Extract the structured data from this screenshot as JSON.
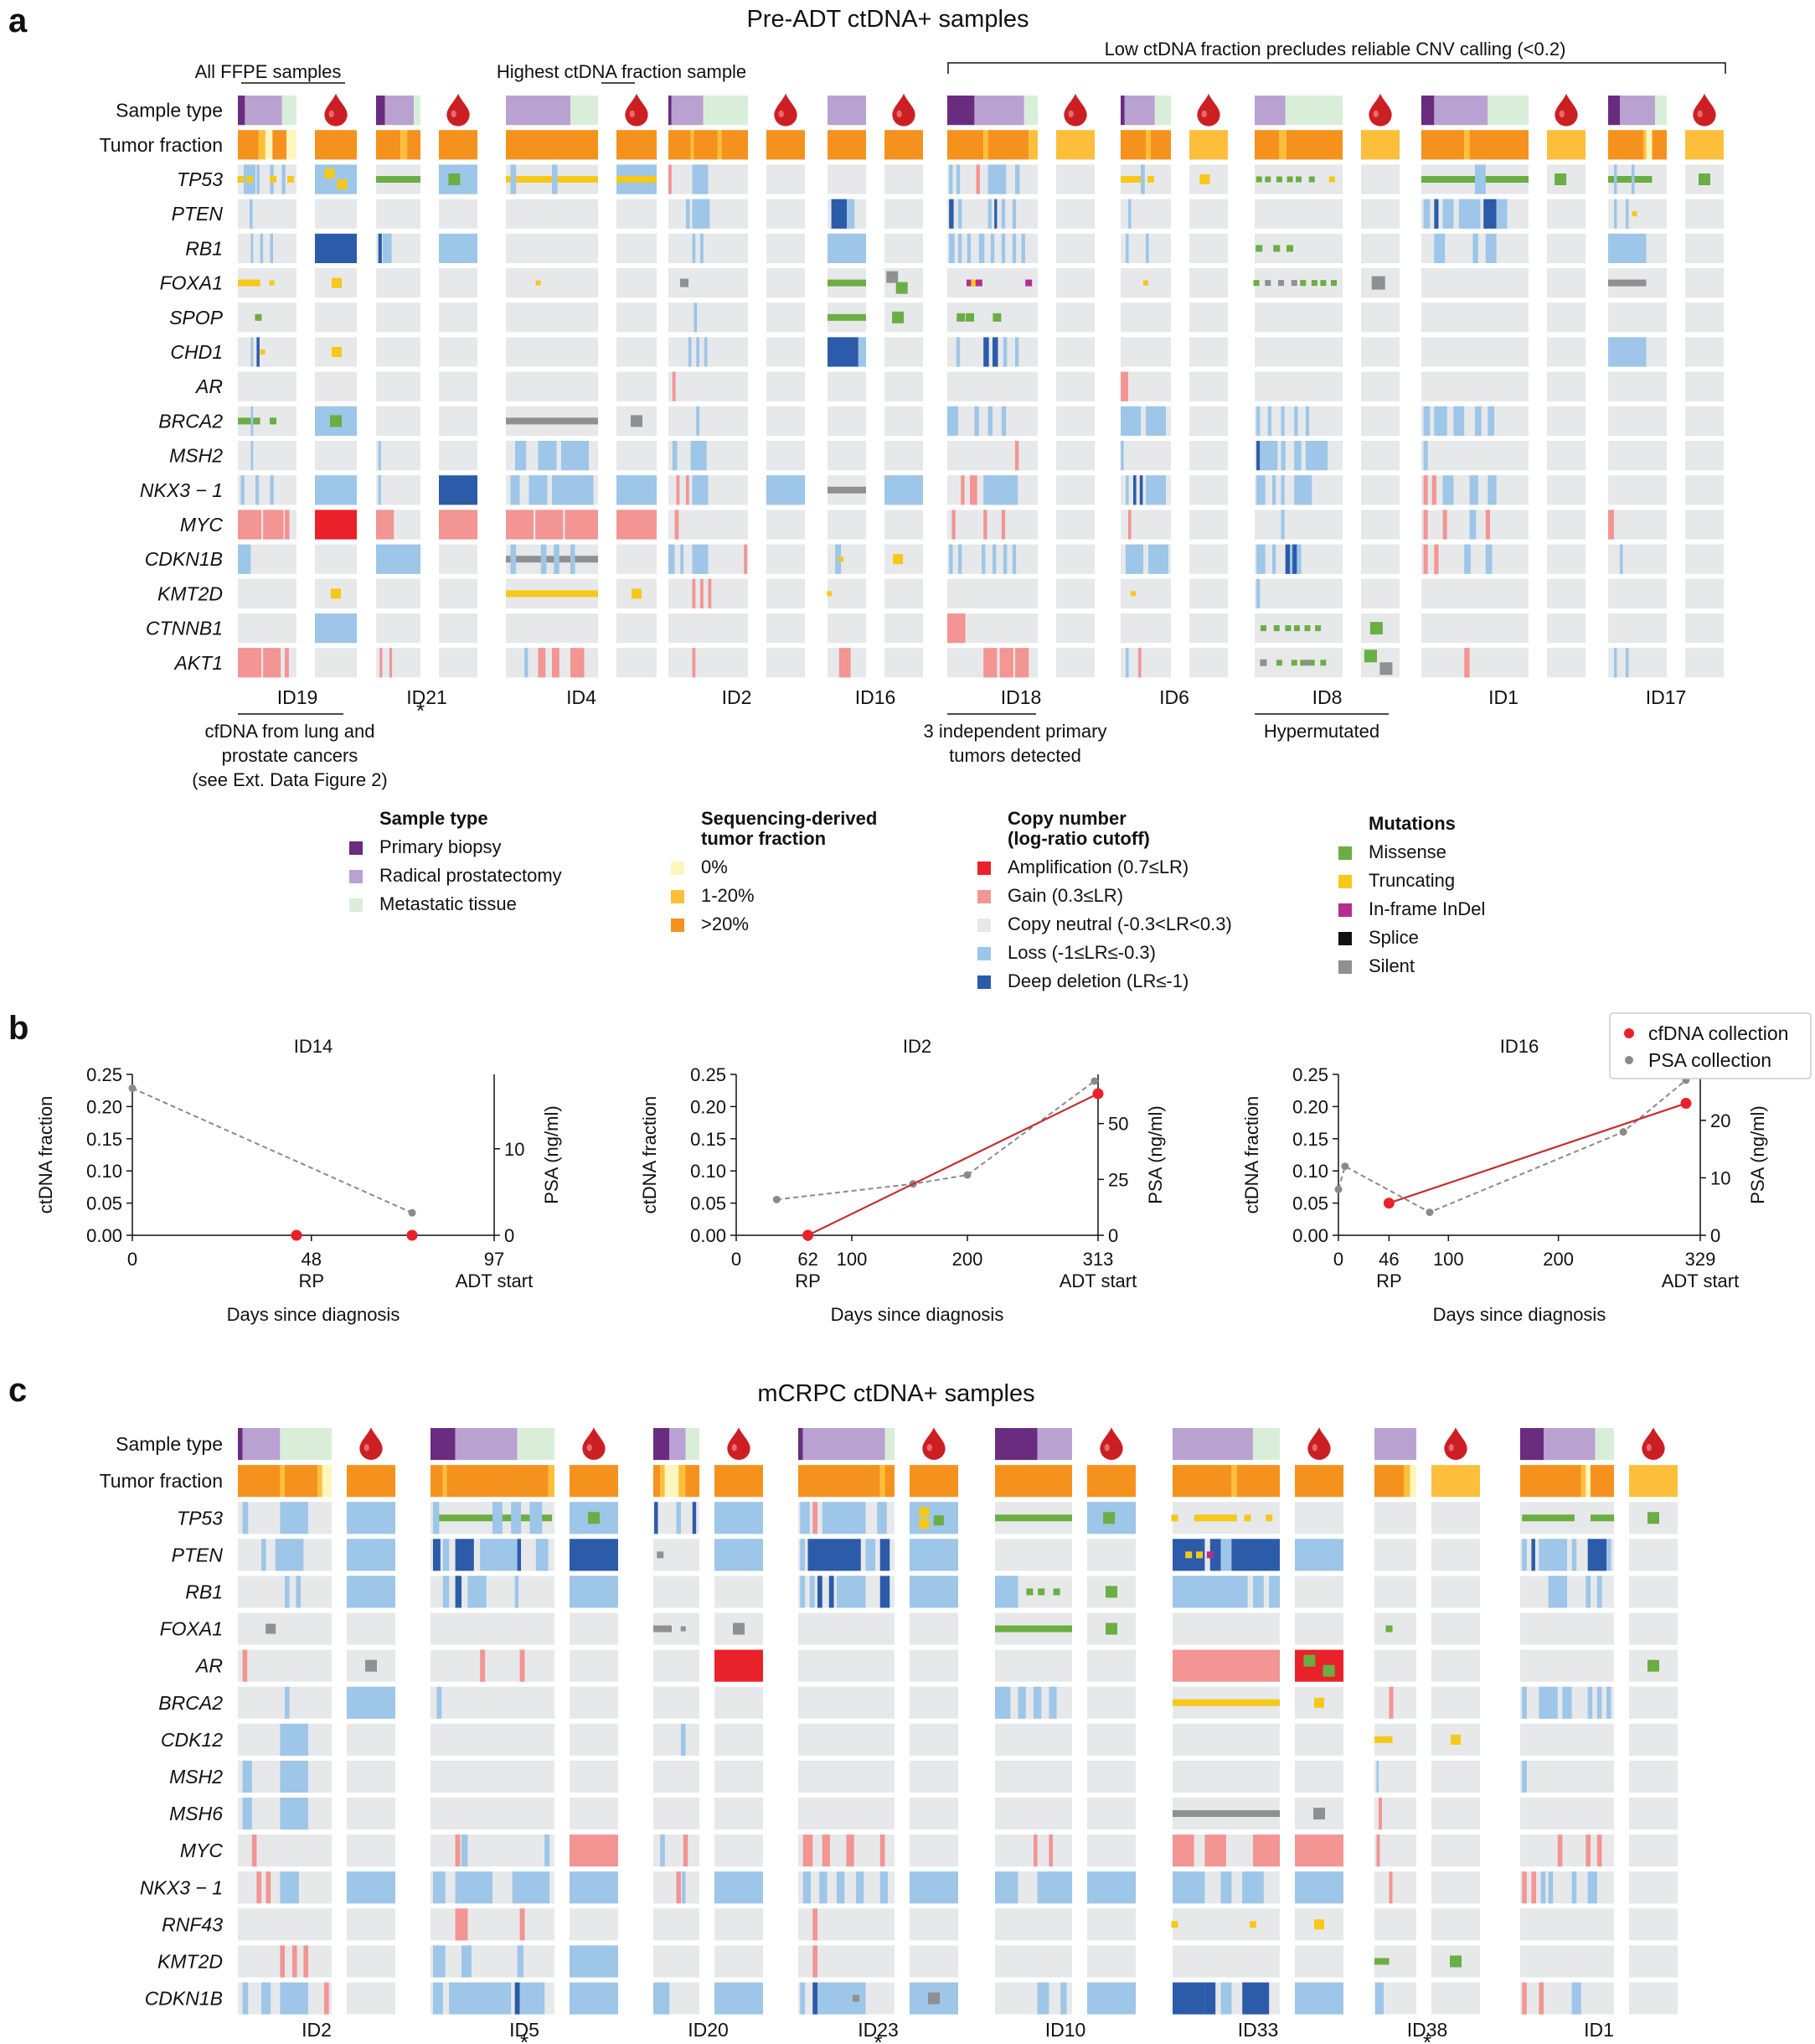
{
  "panel_letters": {
    "a": "a",
    "b": "b",
    "c": "c"
  },
  "colors": {
    "bg_cell": "#e7e8ea",
    "primary_biopsy": "#6a2c7e",
    "radical_prostatectomy": "#b9a2d2",
    "metastatic_tissue": "#d9eed8",
    "tf_0": "#fdf6bf",
    "tf_low": "#fdbf3b",
    "tf_high": "#f5921d",
    "amp": "#e9212a",
    "gain": "#f29593",
    "neutral": "#e7e8ea",
    "loss": "#9dc6e8",
    "deep": "#2c5ba9",
    "missense": "#6aae44",
    "truncating": "#f6c81a",
    "indel": "#b52e8e",
    "splice": "#111111",
    "silent": "#909090",
    "drop": "#cc1f24",
    "psa_line": "#8a8a8a",
    "cfdna_line": "#c4302f"
  },
  "panel_a": {
    "title": "Pre-ADT ctDNA+ samples",
    "row_labels": [
      "Sample type",
      "Tumor fraction",
      "TP53",
      "PTEN",
      "RB1",
      "FOXA1",
      "SPOP",
      "CHD1",
      "AR",
      "BRCA2",
      "MSH2",
      "NKX3 − 1",
      "MYC",
      "CDKN1B",
      "KMT2D",
      "CTNNB1",
      "AKT1"
    ],
    "patients": [
      "ID19",
      "ID21",
      "ID4",
      "ID2",
      "ID16",
      "ID18",
      "ID6",
      "ID8",
      "ID1",
      "ID17"
    ],
    "asterisk": "*",
    "annotations": {
      "ffpe": "All FFPE samples",
      "highest": "Highest ctDNA fraction sample",
      "low_ctdna": "Low ctDNA fraction precludes reliable CNV calling (<0.2)",
      "cfdna_lung_1": "cfDNA from lung and",
      "cfdna_lung_2": "prostate cancers",
      "cfdna_lung_3": "(see Ext. Data Figure 2)",
      "three_primary_1": "3 independent primary",
      "three_primary_2": "tumors detected",
      "hypermutated": "Hypermutated"
    }
  },
  "legend": {
    "sample_type": {
      "title": "Sample type",
      "items": [
        "Primary biopsy",
        "Radical prostatectomy",
        "Metastatic tissue"
      ]
    },
    "tumor_fraction": {
      "title1": "Sequencing-derived",
      "title2": "tumor fraction",
      "items": [
        "0%",
        "1-20%",
        ">20%"
      ]
    },
    "copy_number": {
      "title1": "Copy number",
      "title2": "(log-ratio cutoff)",
      "items": [
        "Amplification (0.7≤LR)",
        "Gain (0.3≤LR)",
        "Copy neutral (-0.3<LR<0.3)",
        "Loss (-1≤LR≤-0.3)",
        "Deep deletion (LR≤-1)"
      ]
    },
    "mutations": {
      "title": "Mutations",
      "items": [
        "Missense",
        "Truncating",
        "In-frame InDel",
        "Splice",
        "Silent"
      ]
    }
  },
  "panel_b": {
    "legend": {
      "cfdna": "cfDNA collection",
      "psa": "PSA collection"
    },
    "left_axis_label": "ctDNA fraction",
    "right_axis_label": "PSA (ng/ml)",
    "x_axis_label": "Days since diagnosis",
    "rp_label": "RP",
    "adt_label": "ADT start"
  },
  "chart_data": [
    {
      "type": "line",
      "title": "ID14",
      "xlabel": "Days since diagnosis",
      "ylabel": "ctDNA fraction",
      "y2label": "PSA (ng/ml)",
      "xlim": [
        0,
        97
      ],
      "ylim": [
        0,
        0.25
      ],
      "y2lim": [
        0,
        18.6
      ],
      "x_ticks": [
        0,
        48,
        97
      ],
      "y_ticks": [
        "0.00",
        "0.05",
        "0.10",
        "0.15",
        "0.20",
        "0.25"
      ],
      "y2_ticks": [
        0,
        10
      ],
      "series": [
        {
          "name": "cfDNA collection",
          "x": [
            44,
            75
          ],
          "y": [
            0.0,
            0.0
          ]
        },
        {
          "name": "PSA collection",
          "x": [
            0,
            75
          ],
          "y": [
            17,
            2.6
          ]
        }
      ]
    },
    {
      "type": "line",
      "title": "ID2",
      "xlabel": "Days since diagnosis",
      "ylabel": "ctDNA fraction",
      "y2label": "PSA (ng/ml)",
      "xlim": [
        0,
        313
      ],
      "ylim": [
        0,
        0.25
      ],
      "y2lim": [
        0,
        72
      ],
      "x_ticks": [
        0,
        62,
        100,
        200,
        313
      ],
      "y_ticks": [
        "0.00",
        "0.05",
        "0.10",
        "0.15",
        "0.20",
        "0.25"
      ],
      "y2_ticks": [
        0,
        25,
        50
      ],
      "series": [
        {
          "name": "cfDNA collection",
          "x": [
            62,
            313
          ],
          "y": [
            0.0,
            0.22
          ]
        },
        {
          "name": "PSA collection",
          "x": [
            35,
            153,
            200,
            310
          ],
          "y": [
            16,
            23,
            27,
            69
          ]
        }
      ]
    },
    {
      "type": "line",
      "title": "ID16",
      "xlabel": "Days since diagnosis",
      "ylabel": "ctDNA fraction",
      "y2label": "PSA (ng/ml)",
      "xlim": [
        0,
        329
      ],
      "ylim": [
        0,
        0.25
      ],
      "y2lim": [
        0,
        28
      ],
      "x_ticks": [
        0,
        46,
        100,
        200,
        329
      ],
      "y_ticks": [
        "0.00",
        "0.05",
        "0.10",
        "0.15",
        "0.20",
        "0.25"
      ],
      "y2_ticks": [
        0,
        10,
        20
      ],
      "series": [
        {
          "name": "cfDNA collection",
          "x": [
            46,
            316
          ],
          "y": [
            0.05,
            0.205
          ]
        },
        {
          "name": "PSA collection",
          "x": [
            0,
            6,
            83,
            259,
            316
          ],
          "y": [
            8,
            12,
            4,
            18,
            27
          ]
        }
      ]
    }
  ],
  "panel_c": {
    "title": "mCRPC ctDNA+ samples",
    "row_labels": [
      "Sample type",
      "Tumor fraction",
      "TP53",
      "PTEN",
      "RB1",
      "FOXA1",
      "AR",
      "BRCA2",
      "CDK12",
      "MSH2",
      "MSH6",
      "MYC",
      "NKX3 − 1",
      "RNF43",
      "KMT2D",
      "CDKN1B"
    ],
    "patients": [
      "ID2",
      "ID5",
      "ID20",
      "ID23",
      "ID10",
      "ID33",
      "ID38",
      "ID1"
    ],
    "asterisk": "*"
  }
}
